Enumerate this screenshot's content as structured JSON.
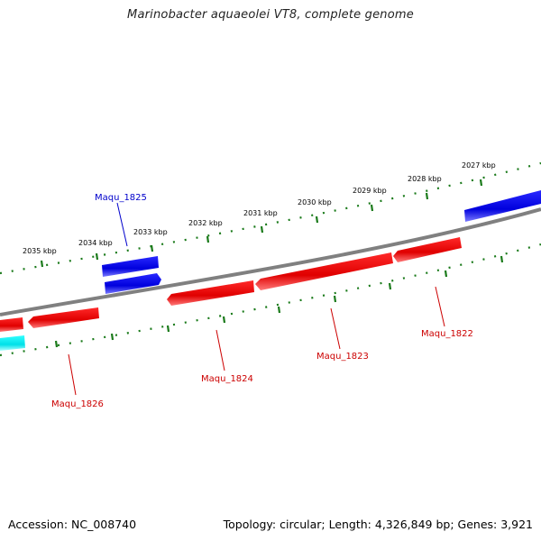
{
  "title": "Marinobacter aquaeolei VT8, complete genome",
  "footer": {
    "accession": "Accession: NC_008740",
    "stats": "Topology: circular; Length: 4,326,849 bp; Genes: 3,921"
  },
  "colors": {
    "backbone": "#808080",
    "scale": "#1a7a1a",
    "forward_gene": "#0000ee",
    "reverse_gene": "#ee0000",
    "rna_gene": "#00e5ee",
    "forward_label": "#0000cc",
    "reverse_label": "#cc0000"
  },
  "scale_labels": [
    "2027 kbp",
    "2028 kbp",
    "2029 kbp",
    "2030 kbp",
    "2031 kbp",
    "2032 kbp",
    "2033 kbp",
    "2034 kbp",
    "2035 kbp"
  ],
  "gene_labels": [
    {
      "id": "Maqu_1825",
      "strand": "forward"
    },
    {
      "id": "Maqu_1822",
      "strand": "reverse"
    },
    {
      "id": "Maqu_1823",
      "strand": "reverse"
    },
    {
      "id": "Maqu_1824",
      "strand": "reverse"
    },
    {
      "id": "Maqu_1826",
      "strand": "reverse"
    }
  ]
}
